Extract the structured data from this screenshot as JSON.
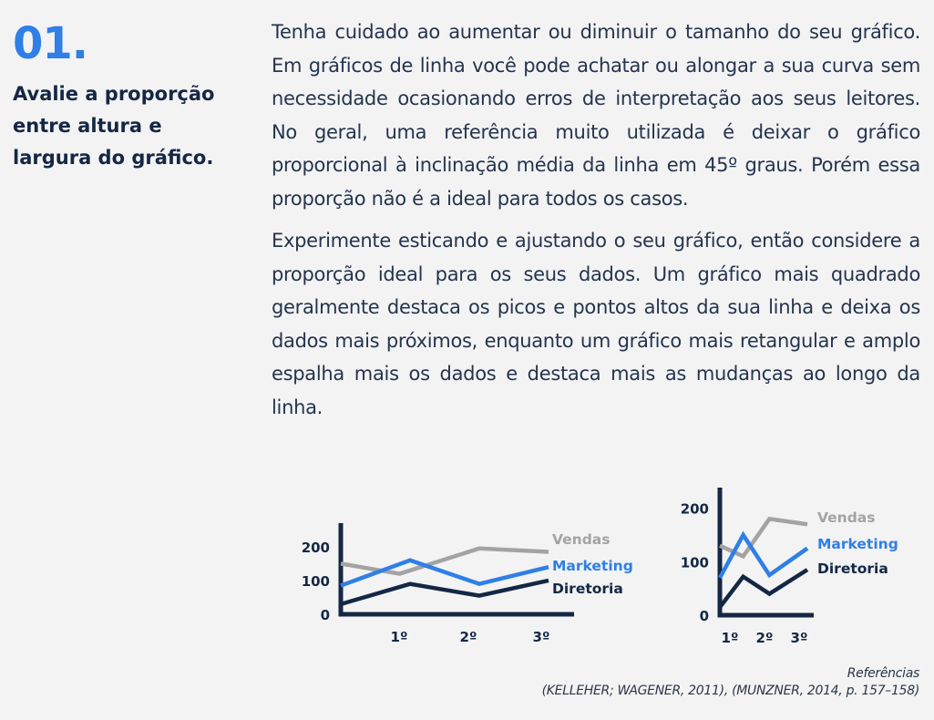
{
  "heading": {
    "number": "01.",
    "title": "Avalie a proporção entre altura e largura do gráfico."
  },
  "body": {
    "paragraph1": "Tenha cuidado ao aumentar ou diminuir o tamanho do seu gráfico. Em gráficos de linha você pode achatar ou alongar a sua curva sem necessidade ocasionando erros de interpretação aos seus leitores. No geral, uma referência muito utilizada é deixar o gráfico proporcional à inclinação média da linha em 45º graus. Porém essa proporção não é a ideal para todos os casos.",
    "paragraph2": "Experimente esticando e ajustando o seu gráfico, então considere a proporção ideal para os seus dados. Um gráfico mais quadrado geralmente destaca os picos e pontos altos da sua linha e deixa os dados mais próximos, enquanto um gráfico mais retangular e amplo espalha mais os dados e destaca mais as mudanças ao longo da linha."
  },
  "colors": {
    "accent": "#2f7fe6",
    "navy": "#142744",
    "gray": "#a3a3a3"
  },
  "chart_data": [
    {
      "type": "line",
      "aspect": "wide",
      "categories": [
        "1º",
        "2º",
        "3º"
      ],
      "yticks": [
        0,
        100,
        200
      ],
      "ylim": [
        0,
        270
      ],
      "series": [
        {
          "name": "Vendas",
          "color": "#a3a3a3",
          "points": [
            [
              0,
              150
            ],
            [
              0.85,
              120
            ],
            [
              2,
              195
            ],
            [
              3,
              185
            ]
          ]
        },
        {
          "name": "Marketing",
          "color": "#2f7fe6",
          "points": [
            [
              0,
              85
            ],
            [
              1,
              160
            ],
            [
              2,
              90
            ],
            [
              3,
              140
            ]
          ]
        },
        {
          "name": "Diretoria",
          "color": "#142744",
          "points": [
            [
              0,
              30
            ],
            [
              1,
              90
            ],
            [
              2,
              55
            ],
            [
              3,
              100
            ]
          ]
        }
      ],
      "legend": "right"
    },
    {
      "type": "line",
      "aspect": "square",
      "categories": [
        "1º",
        "2º",
        "3º"
      ],
      "yticks": [
        0,
        100,
        200
      ],
      "ylim": [
        0,
        230
      ],
      "series": [
        {
          "name": "Vendas",
          "color": "#a3a3a3",
          "points": [
            [
              0,
              130
            ],
            [
              0.4,
              110
            ],
            [
              0.85,
              180
            ],
            [
              1.5,
              170
            ]
          ]
        },
        {
          "name": "Marketing",
          "color": "#2f7fe6",
          "points": [
            [
              0,
              70
            ],
            [
              0.4,
              150
            ],
            [
              0.85,
              75
            ],
            [
              1.5,
              125
            ]
          ]
        },
        {
          "name": "Diretoria",
          "color": "#142744",
          "points": [
            [
              0,
              15
            ],
            [
              0.4,
              72
            ],
            [
              0.85,
              40
            ],
            [
              1.5,
              85
            ]
          ]
        }
      ],
      "legend": "right"
    }
  ],
  "references": {
    "label": "Referências",
    "citations": "(KELLEHER; WAGENER, 2011), (MUNZNER, 2014, p. 157–158)"
  }
}
